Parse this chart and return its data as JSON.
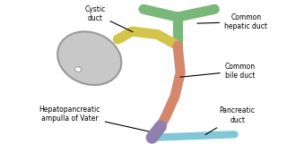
{
  "background_color": "#ffffff",
  "gallbladder_color": "#c8c8c8",
  "gallbladder_edge": "#999999",
  "cystic_duct_color": "#d4c44a",
  "common_hepatic_color": "#7ab87a",
  "common_bile_color": "#d4876a",
  "pancreatic_duct_color": "#80c8d8",
  "ampulla_color": "#9080b0",
  "labels": {
    "cystic_duct": "Cystic\nduct",
    "common_hepatic": "Common\nhepatic duct",
    "common_bile": "Common\nbile duct",
    "hepatopancreatic": "Hepatopancreatic\nampulla of Vater",
    "pancreatic": "Pancreatic\nduct"
  },
  "label_fontsize": 5.5
}
